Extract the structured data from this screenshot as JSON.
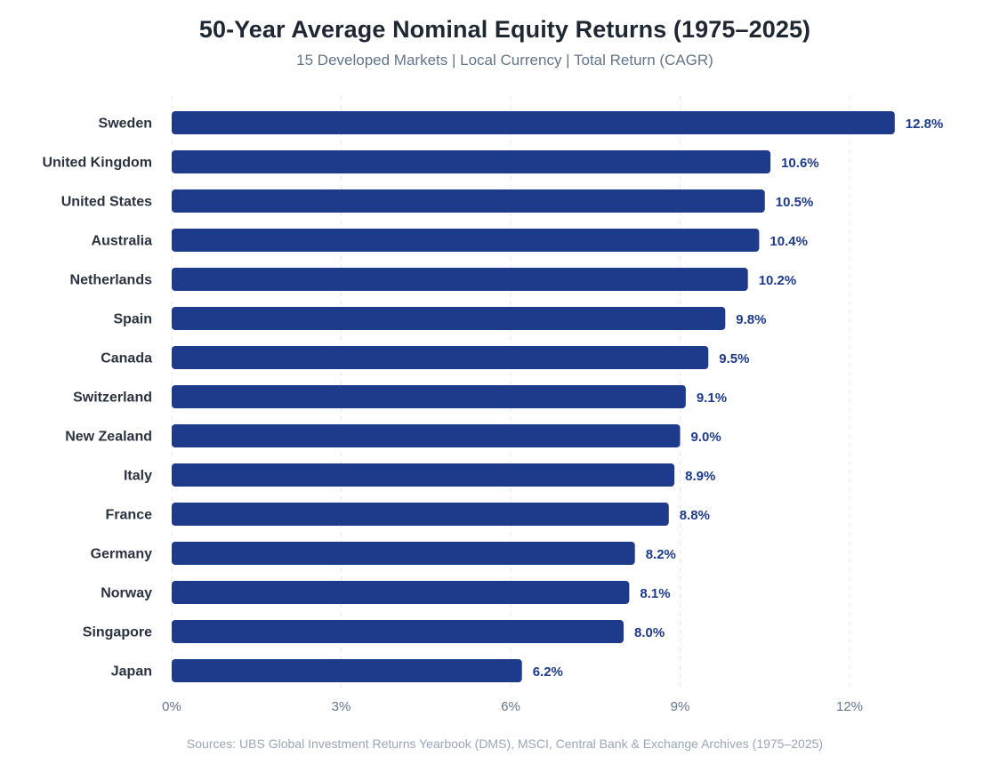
{
  "chart_data": {
    "type": "bar",
    "orientation": "horizontal",
    "title": "50-Year Average Nominal Equity Returns (1975–2025)",
    "subtitle": "15 Developed Markets | Local Currency | Total Return (CAGR)",
    "categories": [
      "Sweden",
      "United Kingdom",
      "United States",
      "Australia",
      "Netherlands",
      "Spain",
      "Canada",
      "Switzerland",
      "New Zealand",
      "Italy",
      "France",
      "Germany",
      "Norway",
      "Singapore",
      "Japan"
    ],
    "values": [
      12.8,
      10.6,
      10.5,
      10.4,
      10.2,
      9.8,
      9.5,
      9.1,
      9.0,
      8.9,
      8.8,
      8.2,
      8.1,
      8.0,
      6.2
    ],
    "data_labels": [
      "12.8%",
      "10.6%",
      "10.5%",
      "10.4%",
      "10.2%",
      "9.8%",
      "9.5%",
      "9.1%",
      "9.0%",
      "8.9%",
      "8.8%",
      "8.2%",
      "8.1%",
      "8.0%",
      "6.2%"
    ],
    "xlim": [
      0,
      13.6
    ],
    "xticks": [
      0,
      3,
      6,
      9,
      12
    ],
    "xtick_labels": [
      "0%",
      "3%",
      "6%",
      "9%",
      "12%"
    ],
    "grid": "vertical dashed",
    "legend": "none",
    "bar_color": "#1e3a8a",
    "source": "Sources: UBS Global Investment Returns Yearbook (DMS), MSCI, Central Bank & Exchange Archives (1975–2025)"
  }
}
